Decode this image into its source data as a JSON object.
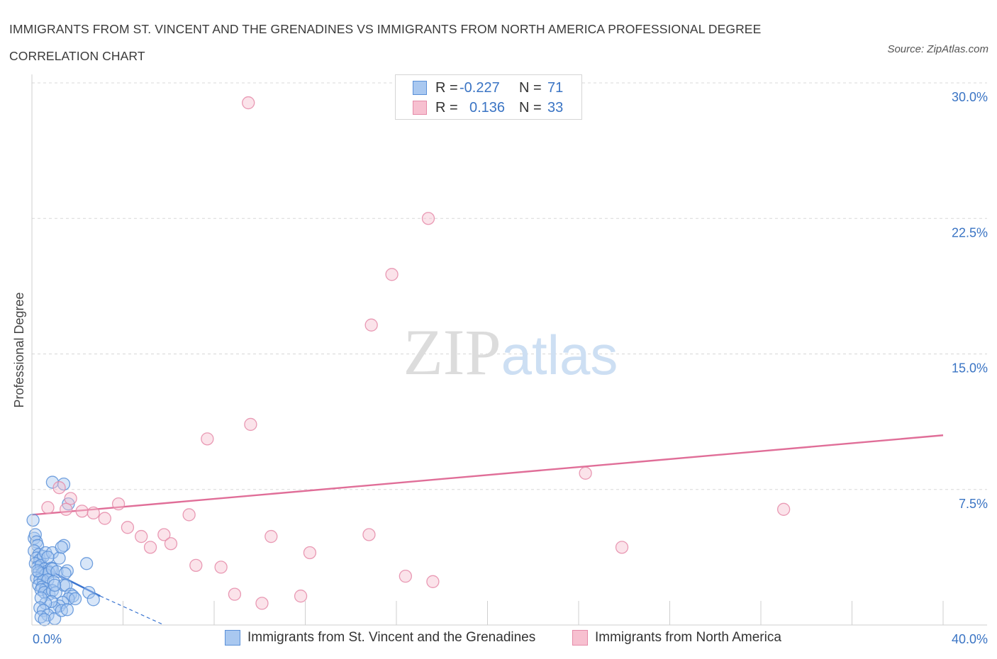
{
  "title_line1": "IMMIGRANTS FROM ST. VINCENT AND THE GRENADINES VS IMMIGRANTS FROM NORTH AMERICA PROFESSIONAL DEGREE",
  "title_line2": "CORRELATION CHART",
  "source": "Source: ZipAtlas.com",
  "watermark": "ZIPatlas",
  "legend": {
    "blue": {
      "r_label": "R =",
      "r_value": "-0.227",
      "n_label": "N =",
      "n_value": "71"
    },
    "pink": {
      "r_label": "R =",
      "r_value": "0.136",
      "n_label": "N =",
      "n_value": "33"
    }
  },
  "bottom_legend": {
    "blue_label": "Immigrants from St. Vincent and the Grenadines",
    "pink_label": "Immigrants from North America"
  },
  "colors": {
    "blue_fill": "#a9c8f0",
    "blue_stroke": "#5a90d8",
    "blue_line": "#3a74d0",
    "pink_fill": "#f7c0d0",
    "pink_stroke": "#e58aa8",
    "pink_line": "#e06e98",
    "axis_text": "#3a74c4",
    "grid": "#d8d8d8"
  },
  "chart_data": {
    "type": "scatter",
    "title": "IMMIGRANTS FROM ST. VINCENT AND THE GRENADINES VS IMMIGRANTS FROM NORTH AMERICA PROFESSIONAL DEGREE CORRELATION CHART",
    "xlabel": "",
    "ylabel": "Professional Degree",
    "xlim": [
      0,
      40
    ],
    "ylim": [
      0,
      30
    ],
    "x_tick_labels": [
      "0.0%",
      "40.0%"
    ],
    "y_ticks": [
      7.5,
      15.0,
      22.5,
      30.0
    ],
    "y_tick_labels": [
      "7.5%",
      "15.0%",
      "22.5%",
      "30.0%"
    ],
    "grid": true,
    "series": [
      {
        "name": "Immigrants from St. Vincent and the Grenadines",
        "color": "blue",
        "R": -0.227,
        "N": 71,
        "trend": {
          "x": [
            0.0,
            3.0
          ],
          "y": [
            3.5,
            1.6
          ]
        },
        "trend_dashed": {
          "x": [
            3.0,
            5.8
          ],
          "y": [
            1.6,
            0.0
          ]
        },
        "points": [
          [
            0.05,
            5.8
          ],
          [
            0.1,
            4.8
          ],
          [
            0.15,
            5.0
          ],
          [
            0.2,
            4.6
          ],
          [
            0.25,
            4.4
          ],
          [
            0.1,
            4.1
          ],
          [
            0.3,
            3.9
          ],
          [
            0.2,
            3.7
          ],
          [
            0.35,
            3.6
          ],
          [
            0.5,
            3.8
          ],
          [
            0.6,
            4.0
          ],
          [
            0.15,
            3.4
          ],
          [
            0.25,
            3.2
          ],
          [
            0.4,
            3.3
          ],
          [
            0.55,
            3.1
          ],
          [
            0.7,
            3.0
          ],
          [
            0.85,
            3.15
          ],
          [
            0.3,
            2.9
          ],
          [
            0.45,
            2.85
          ],
          [
            0.6,
            2.8
          ],
          [
            0.75,
            2.9
          ],
          [
            0.9,
            3.1
          ],
          [
            1.1,
            2.95
          ],
          [
            0.2,
            2.6
          ],
          [
            0.35,
            2.5
          ],
          [
            0.5,
            2.45
          ],
          [
            0.7,
            2.5
          ],
          [
            0.95,
            2.4
          ],
          [
            0.3,
            2.2
          ],
          [
            0.45,
            2.1
          ],
          [
            0.6,
            2.0
          ],
          [
            0.4,
            1.95
          ],
          [
            0.55,
            1.8
          ],
          [
            0.75,
            1.7
          ],
          [
            0.9,
            1.9
          ],
          [
            1.05,
            1.8
          ],
          [
            1.4,
            2.2
          ],
          [
            1.5,
            2.2
          ],
          [
            1.7,
            1.7
          ],
          [
            1.8,
            1.6
          ],
          [
            1.6,
            1.45
          ],
          [
            1.35,
            1.25
          ],
          [
            1.2,
            1.05
          ],
          [
            1.0,
            0.95
          ],
          [
            0.85,
            1.3
          ],
          [
            0.6,
            1.2
          ],
          [
            0.4,
            1.5
          ],
          [
            0.35,
            0.95
          ],
          [
            0.5,
            0.8
          ],
          [
            0.7,
            0.55
          ],
          [
            0.4,
            0.45
          ],
          [
            0.55,
            0.3
          ],
          [
            1.0,
            0.35
          ],
          [
            1.3,
            0.8
          ],
          [
            1.55,
            0.85
          ],
          [
            1.9,
            1.45
          ],
          [
            0.9,
            4.0
          ],
          [
            1.2,
            3.7
          ],
          [
            1.4,
            4.4
          ],
          [
            1.3,
            4.3
          ],
          [
            1.55,
            3.0
          ],
          [
            2.5,
            1.8
          ],
          [
            2.7,
            1.4
          ],
          [
            2.4,
            3.4
          ],
          [
            0.9,
            7.9
          ],
          [
            1.4,
            7.8
          ],
          [
            1.6,
            6.7
          ],
          [
            0.7,
            3.75
          ],
          [
            1.0,
            2.2
          ],
          [
            0.25,
            3.0
          ],
          [
            1.45,
            2.85
          ]
        ]
      },
      {
        "name": "Immigrants from North America",
        "color": "pink",
        "R": 0.136,
        "N": 33,
        "trend": {
          "x": [
            0.0,
            40.0
          ],
          "y": [
            6.1,
            10.5
          ]
        },
        "points": [
          [
            9.5,
            28.9
          ],
          [
            17.4,
            22.5
          ],
          [
            15.8,
            19.4
          ],
          [
            14.9,
            16.6
          ],
          [
            9.6,
            11.1
          ],
          [
            7.7,
            10.3
          ],
          [
            24.3,
            8.4
          ],
          [
            1.2,
            7.6
          ],
          [
            1.7,
            7.0
          ],
          [
            3.8,
            6.7
          ],
          [
            0.7,
            6.5
          ],
          [
            2.2,
            6.3
          ],
          [
            2.7,
            6.2
          ],
          [
            6.9,
            6.1
          ],
          [
            3.2,
            5.9
          ],
          [
            4.2,
            5.4
          ],
          [
            4.8,
            4.9
          ],
          [
            5.8,
            5.0
          ],
          [
            10.5,
            4.9
          ],
          [
            14.8,
            5.0
          ],
          [
            33.0,
            6.4
          ],
          [
            5.2,
            4.3
          ],
          [
            6.1,
            4.5
          ],
          [
            12.2,
            4.0
          ],
          [
            25.9,
            4.3
          ],
          [
            7.2,
            3.3
          ],
          [
            8.3,
            3.2
          ],
          [
            16.4,
            2.7
          ],
          [
            17.6,
            2.4
          ],
          [
            8.9,
            1.7
          ],
          [
            11.8,
            1.6
          ],
          [
            10.1,
            1.2
          ],
          [
            1.5,
            6.4
          ]
        ]
      }
    ]
  }
}
